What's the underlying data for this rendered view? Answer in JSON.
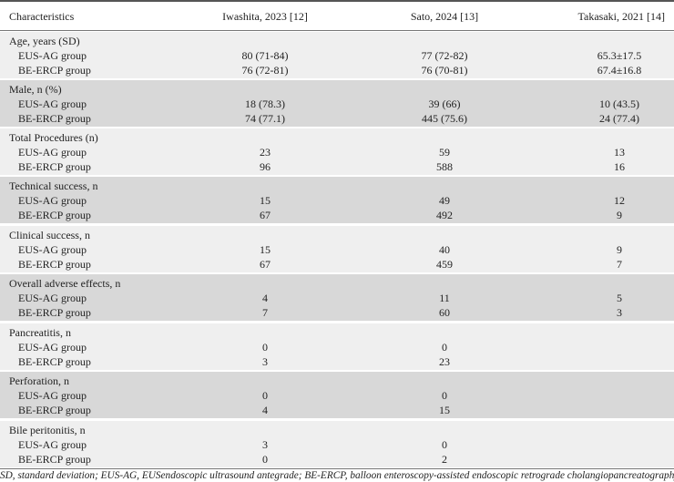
{
  "table": {
    "headers": [
      "Characteristics",
      "Iwashita, 2023 [12]",
      "Sato, 2024 [13]",
      "Takasaki, 2021 [14]"
    ],
    "sections": [
      {
        "title": "Age, years (SD)",
        "rows": [
          {
            "label": "EUS-AG group",
            "values": [
              "80 (71-84)",
              "77 (72-82)",
              "65.3±17.5"
            ]
          },
          {
            "label": "BE-ERCP group",
            "values": [
              "76 (72-81)",
              "76 (70-81)",
              "67.4±16.8"
            ]
          }
        ]
      },
      {
        "title": "Male, n (%)",
        "rows": [
          {
            "label": "EUS-AG group",
            "values": [
              "18 (78.3)",
              "39 (66)",
              "10 (43.5)"
            ]
          },
          {
            "label": "BE-ERCP group",
            "values": [
              "74 (77.1)",
              "445 (75.6)",
              "24 (77.4)"
            ]
          }
        ]
      },
      {
        "title": "Total Procedures (n)",
        "rows": [
          {
            "label": "EUS-AG group",
            "values": [
              "23",
              "59",
              "13"
            ]
          },
          {
            "label": "BE-ERCP group",
            "values": [
              "96",
              "588",
              "16"
            ]
          }
        ]
      },
      {
        "title": "Technical success, n",
        "rows": [
          {
            "label": "EUS-AG group",
            "values": [
              "15",
              "49",
              "12"
            ]
          },
          {
            "label": "BE-ERCP group",
            "values": [
              "67",
              "492",
              "9"
            ]
          }
        ]
      },
      {
        "title": "Clinical success, n",
        "rows": [
          {
            "label": "EUS-AG group",
            "values": [
              "15",
              "40",
              "9"
            ]
          },
          {
            "label": "BE-ERCP group",
            "values": [
              "67",
              "459",
              "7"
            ]
          }
        ]
      },
      {
        "title": "Overall adverse effects, n",
        "rows": [
          {
            "label": "EUS-AG group",
            "values": [
              "4",
              "11",
              "5"
            ]
          },
          {
            "label": "BE-ERCP group",
            "values": [
              "7",
              "60",
              "3"
            ]
          }
        ]
      },
      {
        "title": "Pancreatitis, n",
        "rows": [
          {
            "label": "EUS-AG group",
            "values": [
              "0",
              "0",
              ""
            ]
          },
          {
            "label": "BE-ERCP group",
            "values": [
              "3",
              "23",
              ""
            ]
          }
        ]
      },
      {
        "title": "Perforation, n",
        "rows": [
          {
            "label": "EUS-AG group",
            "values": [
              "0",
              "0",
              ""
            ]
          },
          {
            "label": "BE-ERCP group",
            "values": [
              "4",
              "15",
              ""
            ]
          }
        ]
      },
      {
        "title": "Bile peritonitis, n",
        "rows": [
          {
            "label": "EUS-AG group",
            "values": [
              "3",
              "0",
              ""
            ]
          },
          {
            "label": "BE-ERCP group",
            "values": [
              "0",
              "2",
              ""
            ]
          }
        ]
      }
    ],
    "footnote": "SD, standard deviation; EUS-AG, EUSendoscopic ultrasound antegrade; BE-ERCP, balloon enteroscopy-assisted endoscopic retrograde cholangiopancreatography"
  },
  "colors": {
    "band_light": "#efefef",
    "band_dark": "#d8d8d8"
  }
}
